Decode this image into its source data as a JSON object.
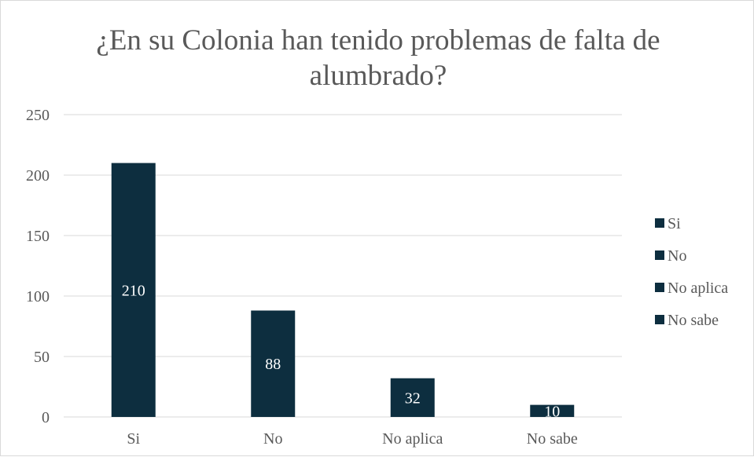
{
  "chart_data": {
    "type": "bar",
    "title": "¿En su Colonia han tenido problemas de falta de alumbrado?",
    "title_lines": [
      "¿En su Colonia han tenido problemas de falta de",
      "alumbrado?"
    ],
    "categories": [
      "Si",
      "No",
      "No aplica",
      "No sabe"
    ],
    "values": [
      210,
      88,
      32,
      10
    ],
    "data_labels": [
      "210",
      "88",
      "32",
      "10"
    ],
    "ylim": [
      0,
      250
    ],
    "yticks": [
      0,
      50,
      100,
      150,
      200,
      250
    ],
    "ytick_labels": [
      "0",
      "50",
      "100",
      "150",
      "200",
      "250"
    ],
    "xlabel": "",
    "ylabel": "",
    "grid": true,
    "legend": {
      "position": "right",
      "entries": [
        "Si",
        "No",
        "No aplica",
        "No sabe"
      ]
    },
    "colors": {
      "bar": "#0d2e3f",
      "grid": "#d9d9d9",
      "axis_text": "#595959",
      "label_text": "#ffffff"
    }
  }
}
